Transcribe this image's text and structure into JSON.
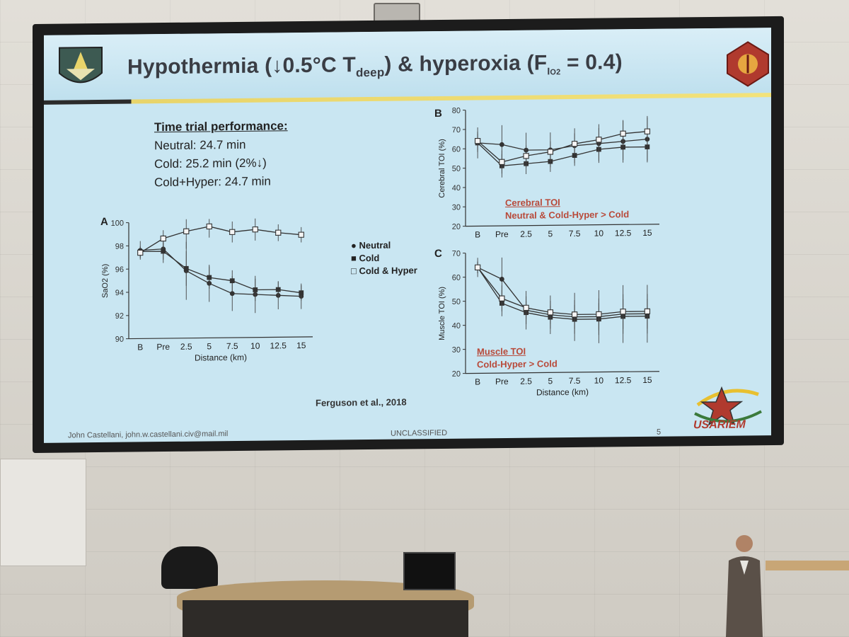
{
  "slide": {
    "title_parts": {
      "main": "Hypothermia (",
      "arrow": "↓",
      "temp": "0.5°C T",
      "sub": "deep",
      "mid": ") & hyperoxia (F",
      "sub2": "I",
      "sub3": "O2",
      "end": " = 0.4)"
    },
    "time_trial": {
      "heading": "Time trial performance:",
      "neutral": "Neutral: 24.7 min",
      "cold": "Cold: 25.2 min (2%↓)",
      "coldhyper": "Cold+Hyper: 24.7 min"
    },
    "legend": {
      "neutral": "Neutral",
      "cold": "Cold",
      "coldhyper": "Cold & Hyper"
    },
    "panel_labels": {
      "a": "A",
      "b": "B",
      "c": "C"
    },
    "annotations": {
      "cerebral_title": "Cerebral TOI",
      "cerebral_text": "Neutral & Cold-Hyper > Cold",
      "muscle_title": "Muscle TOI",
      "muscle_text": "Cold-Hyper > Cold"
    },
    "citation": "Ferguson et al., 2018",
    "footer_author": "John Castellani, john.w.castellani.civ@mail.mil",
    "footer_class": "UNCLASSIFIED",
    "page_number": "5",
    "usariem_text": "USARIEM"
  },
  "colors": {
    "slide_bg": "#c9e6f2",
    "title": "#3a3d44",
    "annotation_red": "#b84a3a",
    "accent_yellow": "#f2e27a"
  },
  "chart_data": [
    {
      "type": "line",
      "panel": "A",
      "ylabel": "SaO2 (%)",
      "xlabel": "Distance (km)",
      "categories": [
        "B",
        "Pre",
        "2.5",
        "5",
        "7.5",
        "10",
        "12.5",
        "15"
      ],
      "ylim": [
        90,
        100
      ],
      "yticks": [
        90,
        92,
        94,
        96,
        98,
        100
      ],
      "series": [
        {
          "name": "Neutral",
          "values": [
            97.6,
            97.7,
            95.8,
            94.7,
            93.8,
            93.7,
            93.6,
            93.5
          ]
        },
        {
          "name": "Cold",
          "values": [
            97.5,
            97.5,
            96.0,
            95.2,
            94.9,
            94.1,
            94.1,
            93.8
          ]
        },
        {
          "name": "Cold & Hyper",
          "values": [
            97.4,
            98.6,
            99.2,
            99.6,
            99.1,
            99.3,
            99.0,
            98.8
          ]
        }
      ],
      "error": [
        0.8,
        1.2,
        2.5,
        1.6,
        1.5,
        1.6,
        1.2,
        1.1
      ]
    },
    {
      "type": "line",
      "panel": "B",
      "ylabel": "Cerebral TOI (%)",
      "categories": [
        "B",
        "Pre",
        "2.5",
        "5",
        "7.5",
        "10",
        "12.5",
        "15"
      ],
      "ylim": [
        20,
        80
      ],
      "yticks": [
        20,
        30,
        40,
        50,
        60,
        70,
        80
      ],
      "series": [
        {
          "name": "Neutral",
          "values": [
            63,
            62,
            59,
            59,
            61,
            62,
            63,
            64
          ]
        },
        {
          "name": "Cold",
          "values": [
            63,
            51,
            52,
            53,
            56,
            59,
            60,
            60
          ]
        },
        {
          "name": "Cold & Hyper",
          "values": [
            64,
            53,
            56,
            58,
            62,
            64,
            67,
            68
          ]
        }
      ],
      "error": [
        8,
        10,
        9,
        9,
        9,
        10,
        11,
        12
      ]
    },
    {
      "type": "line",
      "panel": "C",
      "ylabel": "Muscle TOI (%)",
      "xlabel": "Distance (km)",
      "categories": [
        "B",
        "Pre",
        "2.5",
        "5",
        "7.5",
        "10",
        "12.5",
        "15"
      ],
      "ylim": [
        20,
        70
      ],
      "yticks": [
        20,
        30,
        40,
        50,
        60,
        70
      ],
      "series": [
        {
          "name": "Neutral",
          "values": [
            64,
            59,
            46,
            44,
            43,
            43,
            44,
            44
          ]
        },
        {
          "name": "Cold",
          "values": [
            64,
            49,
            45,
            43,
            42,
            42,
            43,
            43
          ]
        },
        {
          "name": "Cold & Hyper",
          "values": [
            64,
            51,
            47,
            45,
            44,
            44,
            45,
            45
          ]
        }
      ],
      "error": [
        4,
        9,
        8,
        8,
        10,
        11,
        12,
        12
      ]
    }
  ]
}
